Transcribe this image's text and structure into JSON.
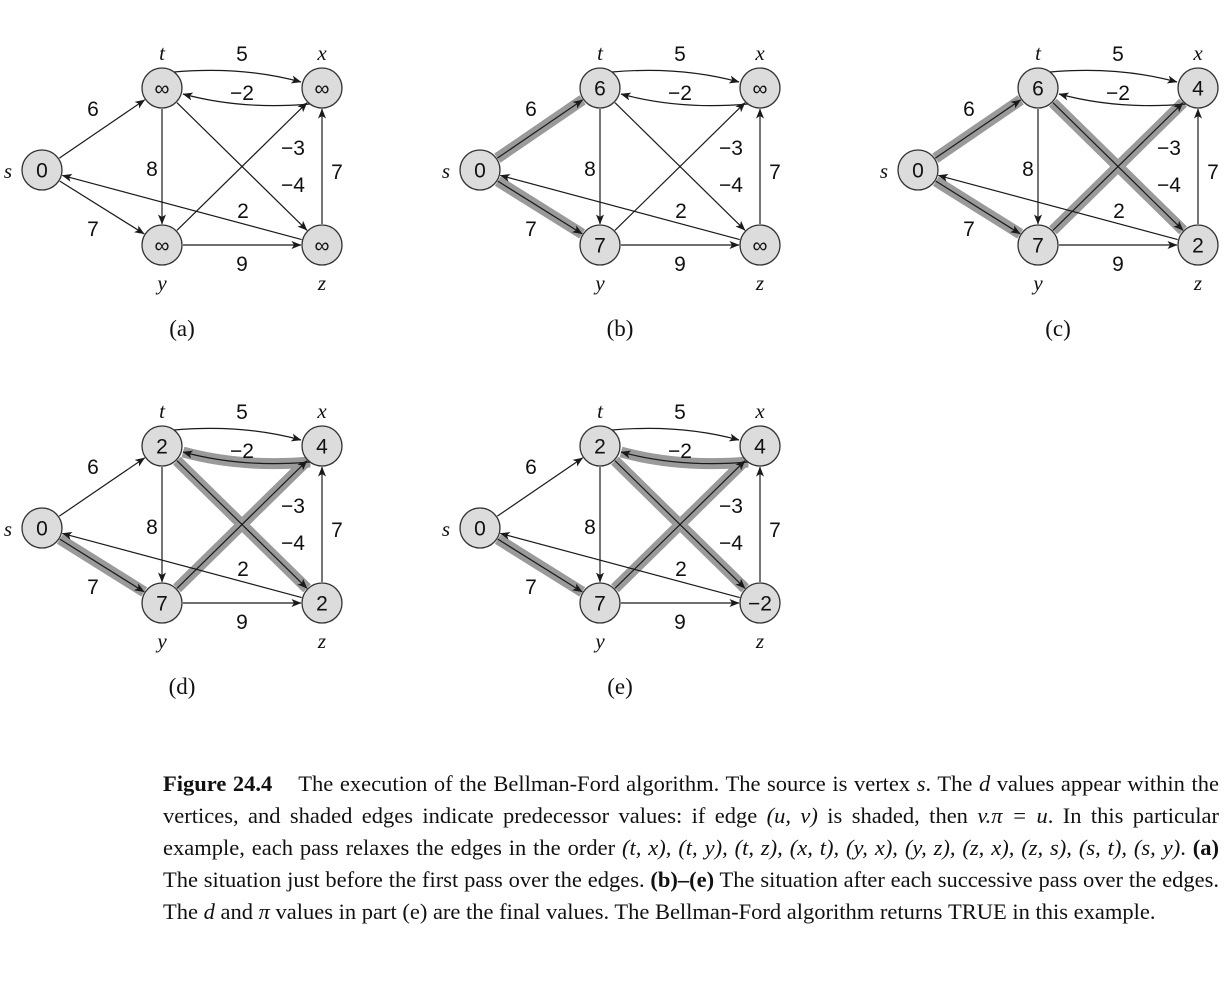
{
  "panels": [
    {
      "label": "(a)",
      "values": {
        "s": "0",
        "t": "∞",
        "x": "∞",
        "y": "∞",
        "z": "∞"
      },
      "shaded": []
    },
    {
      "label": "(b)",
      "values": {
        "s": "0",
        "t": "6",
        "x": "∞",
        "y": "7",
        "z": "∞"
      },
      "shaded": [
        "s-t",
        "s-y"
      ]
    },
    {
      "label": "(c)",
      "values": {
        "s": "0",
        "t": "6",
        "x": "4",
        "y": "7",
        "z": "2"
      },
      "shaded": [
        "s-t",
        "s-y",
        "y-x",
        "t-z"
      ]
    },
    {
      "label": "(d)",
      "values": {
        "s": "0",
        "t": "2",
        "x": "4",
        "y": "7",
        "z": "2"
      },
      "shaded": [
        "s-y",
        "x-t",
        "y-x",
        "t-z"
      ]
    },
    {
      "label": "(e)",
      "values": {
        "s": "0",
        "t": "2",
        "x": "4",
        "y": "7",
        "z": "−2"
      },
      "shaded": [
        "s-y",
        "x-t",
        "y-x",
        "t-z"
      ]
    }
  ],
  "vertex_names": {
    "s": "s",
    "t": "t",
    "x": "x",
    "y": "y",
    "z": "z"
  },
  "edges": [
    {
      "id": "t-x",
      "weight": "5"
    },
    {
      "id": "x-t",
      "weight": "−2"
    },
    {
      "id": "s-t",
      "weight": "6"
    },
    {
      "id": "s-y",
      "weight": "7"
    },
    {
      "id": "t-y",
      "weight": "8"
    },
    {
      "id": "y-x",
      "weight": "−3"
    },
    {
      "id": "t-z",
      "weight": "−4"
    },
    {
      "id": "z-s",
      "weight": "2"
    },
    {
      "id": "y-z",
      "weight": "9"
    },
    {
      "id": "z-x",
      "weight": "7"
    }
  ],
  "caption": {
    "fig_label": "Figure 24.4",
    "part1": "The execution of the Bellman-Ford algorithm. The source is vertex ",
    "var_s": "s",
    "part2": ". The ",
    "var_d1": "d",
    "part3": " values appear within the vertices, and shaded edges indicate predecessor values: if edge ",
    "edge_uv": "(u, v)",
    "part4": " is shaded, then ",
    "pi_eq": "v.π = u",
    "part5": ". In this particular example, each pass relaxes the edges in the order ",
    "order": "(t, x), (t, y), (t, z), (x, t), (y, x), (y, z), (z, x), (z, s), (s, t), (s, y)",
    "part6": ". ",
    "a_label": "(a)",
    "a_text": " The situation just before the first pass over the edges. ",
    "be_label": "(b)–(e)",
    "be_text": " The situation after each successive pass over the edges. The ",
    "var_d2": "d",
    "part7": " and ",
    "var_pi": "π",
    "part8": " values in part (e) are the final values. The Bellman-Ford algorithm returns ",
    "true_word": "TRUE",
    "part9": " in this example."
  }
}
